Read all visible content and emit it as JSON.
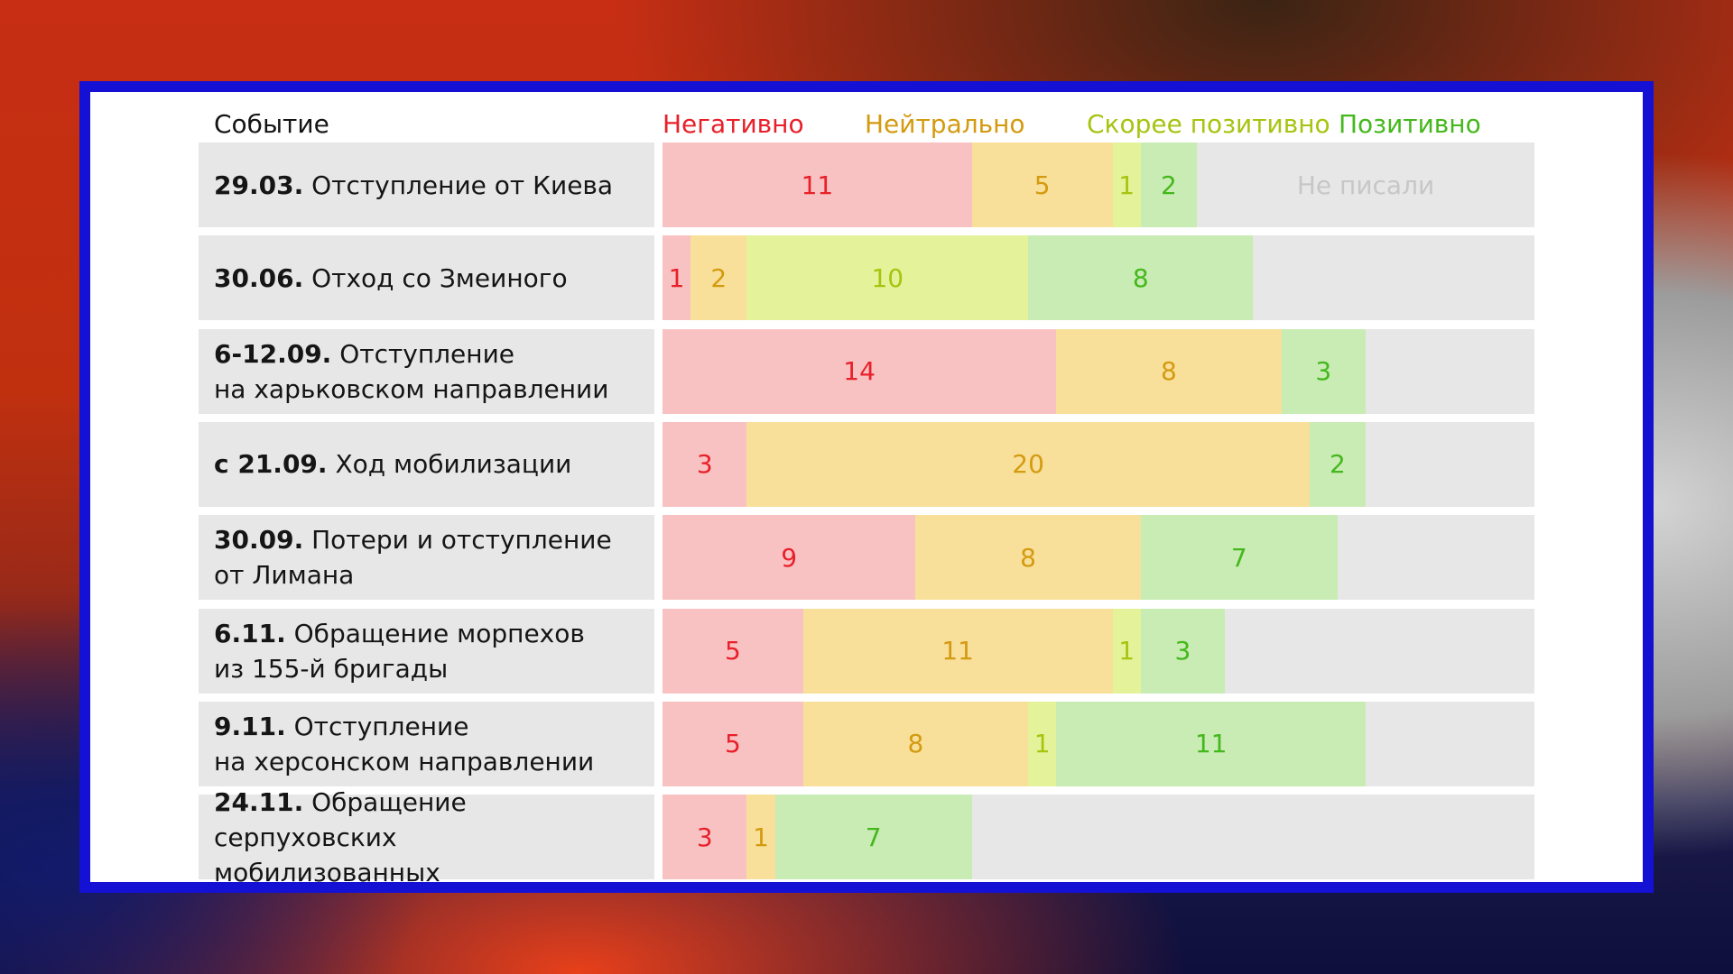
{
  "header": {
    "event_label": "Событие",
    "categories": [
      "Негативно",
      "Нейтрально",
      "Скорее позитивно",
      "Позитивно"
    ]
  },
  "colors": {
    "negative": {
      "fill": "#f9c2c2",
      "text": "#e8202a"
    },
    "neutral": {
      "fill": "#f8e09a",
      "text": "#d49a10"
    },
    "rather_positive": {
      "fill": "#e4f39a",
      "text": "#a6c410"
    },
    "positive": {
      "fill": "#c9ebb4",
      "text": "#44b81c"
    },
    "empty": "#e7e7e7"
  },
  "chart_data": {
    "type": "bar",
    "stacked": true,
    "orientation": "horizontal",
    "max": 31,
    "categories": [
      {
        "date": "29.03.",
        "text": [
          "Отступление от Киева"
        ],
        "note": "Не писали"
      },
      {
        "date": "30.06.",
        "text": [
          "Отход со Змеиного"
        ]
      },
      {
        "date": "6-12.09.",
        "text": [
          "Отступление",
          "на харьковском направлении"
        ]
      },
      {
        "date": "с 21.09.",
        "text": [
          "Ход мобилизации"
        ]
      },
      {
        "date": "30.09.",
        "text": [
          "Потери и отступление",
          "от Лимана"
        ]
      },
      {
        "date": "6.11.",
        "text": [
          "Обращение морпехов",
          "из 155-й бригады"
        ]
      },
      {
        "date": "9.11.",
        "text": [
          "Отступление",
          "на херсонском направлении"
        ]
      },
      {
        "date": "24.11.",
        "text": [
          "Обращение серпуховских",
          "мобилизованных"
        ]
      }
    ],
    "series": [
      {
        "name": "Негативно",
        "key": "negative",
        "values": [
          11,
          1,
          14,
          3,
          9,
          5,
          5,
          3
        ]
      },
      {
        "name": "Нейтрально",
        "key": "neutral",
        "values": [
          5,
          2,
          8,
          20,
          8,
          11,
          8,
          1
        ]
      },
      {
        "name": "Скорее позитивно",
        "key": "rather_positive",
        "values": [
          1,
          10,
          0,
          0,
          0,
          1,
          1,
          0
        ]
      },
      {
        "name": "Позитивно",
        "key": "positive",
        "values": [
          2,
          8,
          3,
          2,
          7,
          3,
          11,
          7
        ]
      }
    ]
  }
}
